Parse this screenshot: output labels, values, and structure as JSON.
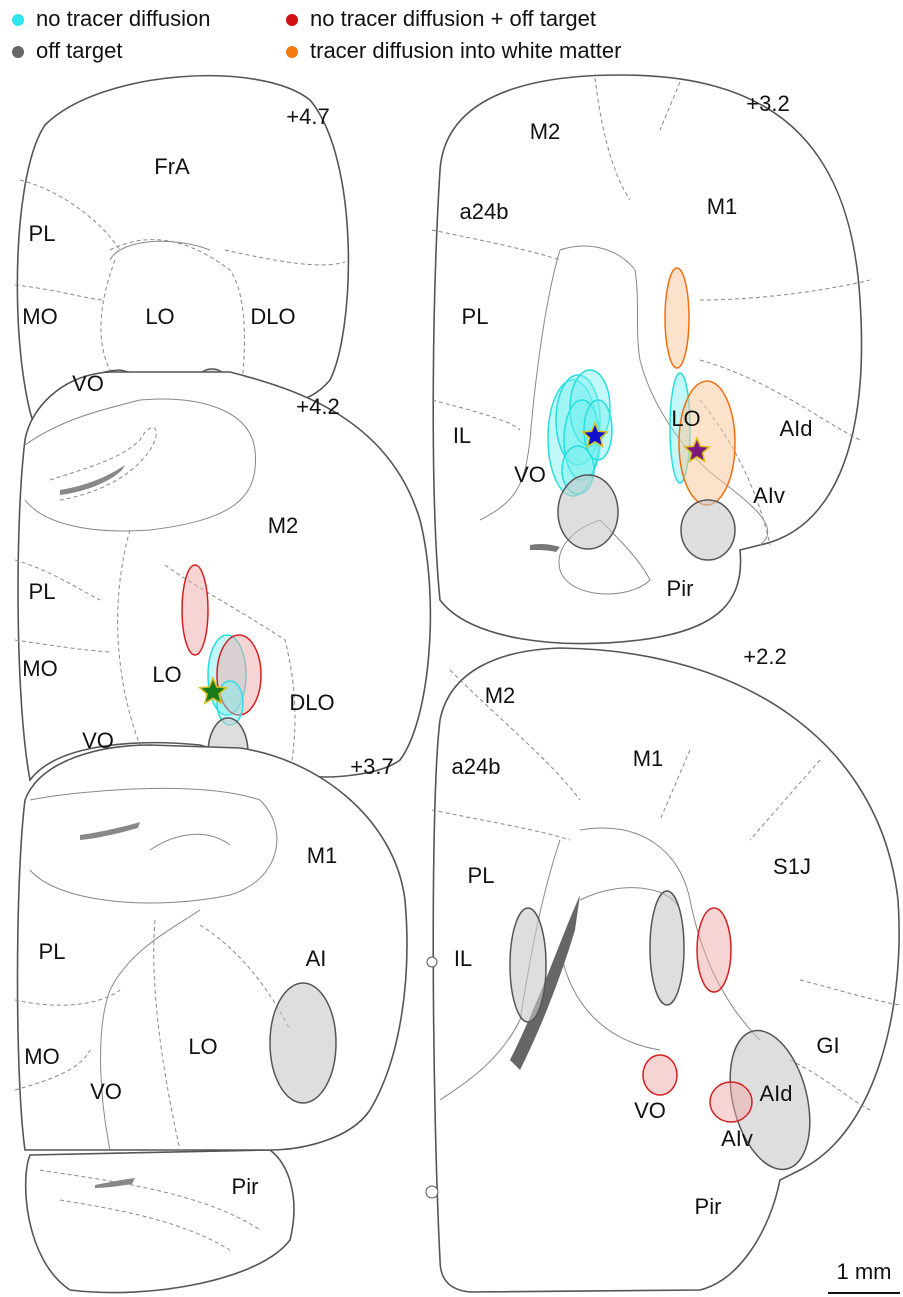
{
  "legend": [
    "no tracer diffusion",
    "off target",
    "no tracer diffusion + off target",
    "tracer diffusion into white matter"
  ],
  "sections": [
    {
      "coordinate": "+4.7",
      "labels": [
        "FrA",
        "PL",
        "MO",
        "LO",
        "DLO",
        "VO"
      ]
    },
    {
      "coordinate": "+4.2",
      "labels": [
        "M2",
        "PL",
        "MO",
        "LO",
        "DLO",
        "VO"
      ]
    },
    {
      "coordinate": "+3.7",
      "labels": [
        "M1",
        "PL",
        "AI",
        "LO",
        "MO",
        "VO",
        "Pir"
      ]
    },
    {
      "coordinate": "+3.2",
      "labels": [
        "M2",
        "M1",
        "a24b",
        "PL",
        "IL",
        "LO",
        "AId",
        "VO",
        "AIv",
        "Pir"
      ]
    },
    {
      "coordinate": "+2.2",
      "labels": [
        "M2",
        "M1",
        "a24b",
        "PL",
        "S1J",
        "IL",
        "GI",
        "AId",
        "VO",
        "AIv",
        "Pir"
      ]
    }
  ],
  "scale_bar": "1 mm"
}
